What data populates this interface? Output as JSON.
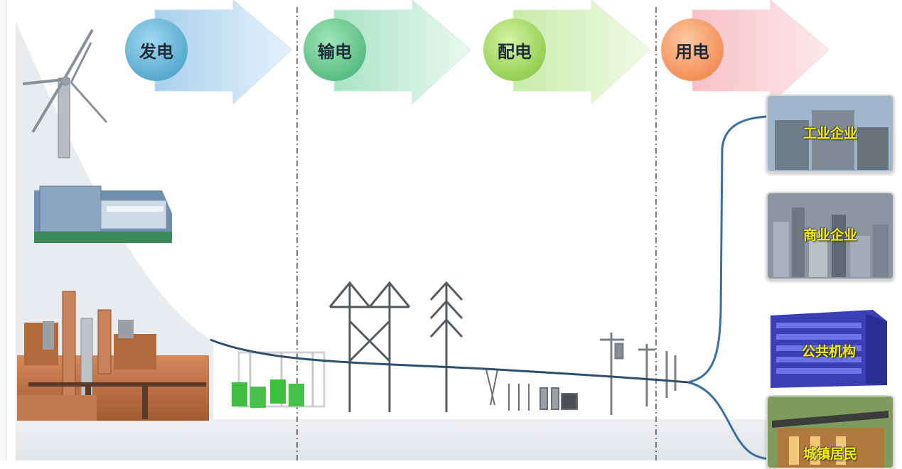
{
  "stages": [
    {
      "label": "发电",
      "color": "#4aa6c8"
    },
    {
      "label": "输电",
      "color": "#52c07a"
    },
    {
      "label": "配电",
      "color": "#8ccd3c"
    },
    {
      "label": "用电",
      "color": "#f08a4e"
    }
  ],
  "consumers": [
    {
      "label": "工业企业"
    },
    {
      "label": "商业企业"
    },
    {
      "label": "公共机构"
    },
    {
      "label": "城镇居民"
    }
  ]
}
